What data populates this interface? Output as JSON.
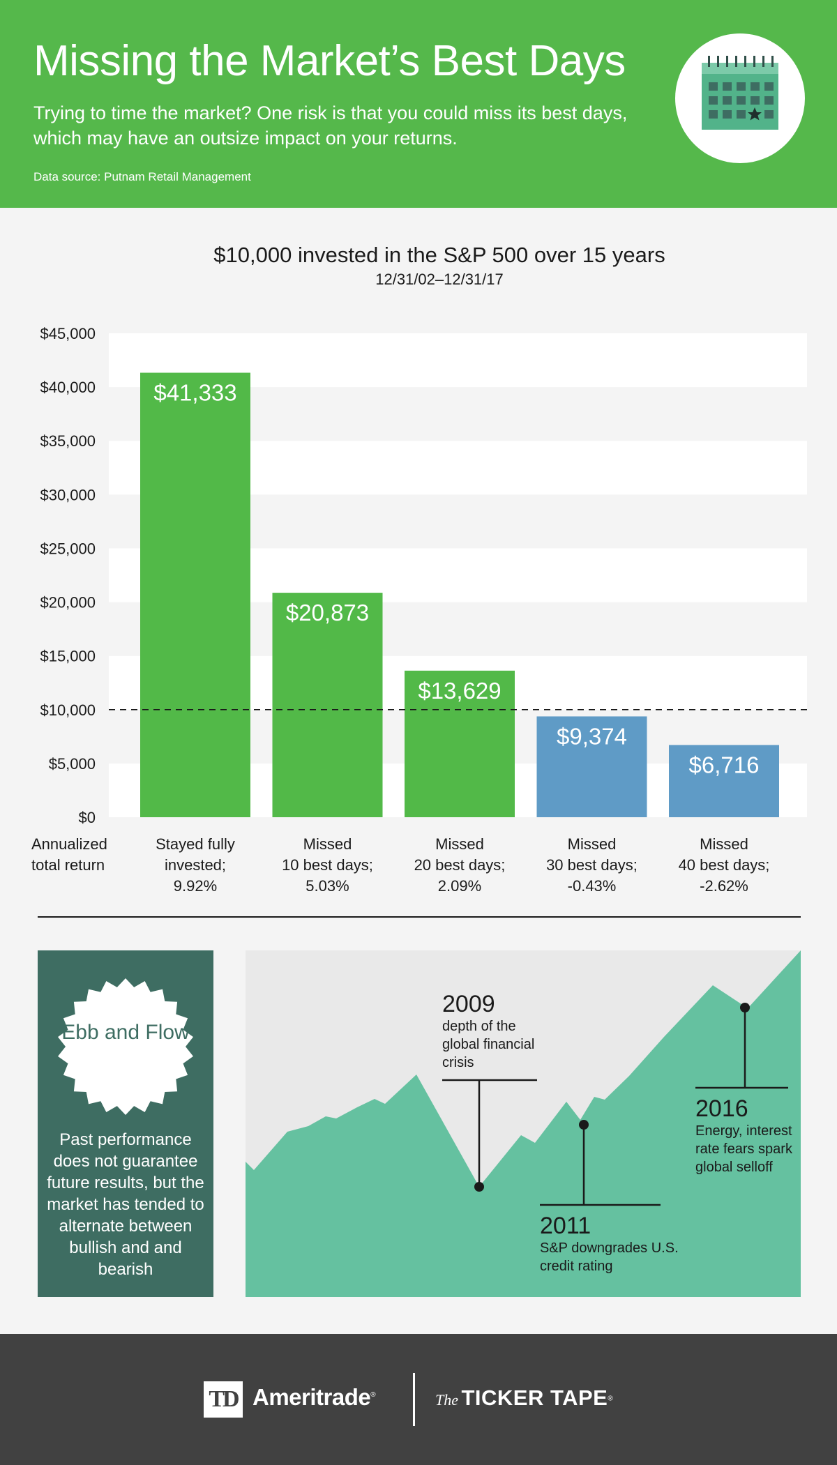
{
  "header": {
    "title": "Missing the Market’s Best Days",
    "subtitle": "Trying to time the market? One risk is that you could miss its best days, which may have an outsize impact on your returns.",
    "source": "Data source: Putnam Retail Management",
    "icon": "calendar-icon"
  },
  "chart_data": {
    "type": "bar",
    "title": "$10,000 invested in the S&P 500 over 15 years",
    "subtitle": "12/31/02–12/31/17",
    "ylim": [
      0,
      45000
    ],
    "yticks": [
      "$0",
      "$5,000",
      "$10,000",
      "$15,000",
      "$20,000",
      "$25,000",
      "$30,000",
      "$35,000",
      "$40,000",
      "$45,000"
    ],
    "reference_line": 10000,
    "row_label": [
      "Annualized",
      "total return"
    ],
    "categories": [
      [
        "Stayed fully",
        "invested;",
        "9.92%"
      ],
      [
        "Missed",
        "10 best days;",
        "5.03%"
      ],
      [
        "Missed",
        "20 best days;",
        "2.09%"
      ],
      [
        "Missed",
        "30 best days;",
        "-0.43%"
      ],
      [
        "Missed",
        "40 best days;",
        "-2.62%"
      ]
    ],
    "values": [
      41333,
      20873,
      13629,
      9374,
      6716
    ],
    "value_labels": [
      "$41,333",
      "$20,873",
      "$13,629",
      "$9,374",
      "$6,716"
    ],
    "bar_colors": [
      "#52b948",
      "#52b948",
      "#52b948",
      "#5f9bc6",
      "#5f9bc6"
    ],
    "grid": true
  },
  "ebb": {
    "badge": "Ebb and Flow",
    "body": "Past performance does not guarantee future results, but the market has tended to alternate between bullish and and bearish"
  },
  "events": [
    {
      "year": "2009",
      "text": "depth of the global financial crisis"
    },
    {
      "year": "2011",
      "text": "S&P downgrades U.S. credit rating"
    },
    {
      "year": "2016",
      "text": "Energy, interest rate fears spark global selloff"
    }
  ],
  "colors": {
    "green": "#55b84b",
    "blue": "#5f9bc6",
    "teal": "#65c1a0",
    "dark_teal": "#3e6d62",
    "footer": "#414141"
  },
  "footer": {
    "td_mark": "TD",
    "brand": "Ameritrade",
    "brand_mark": "®",
    "publication_prefix": "The",
    "publication": "TICKER TAPE",
    "publication_mark": "®"
  }
}
